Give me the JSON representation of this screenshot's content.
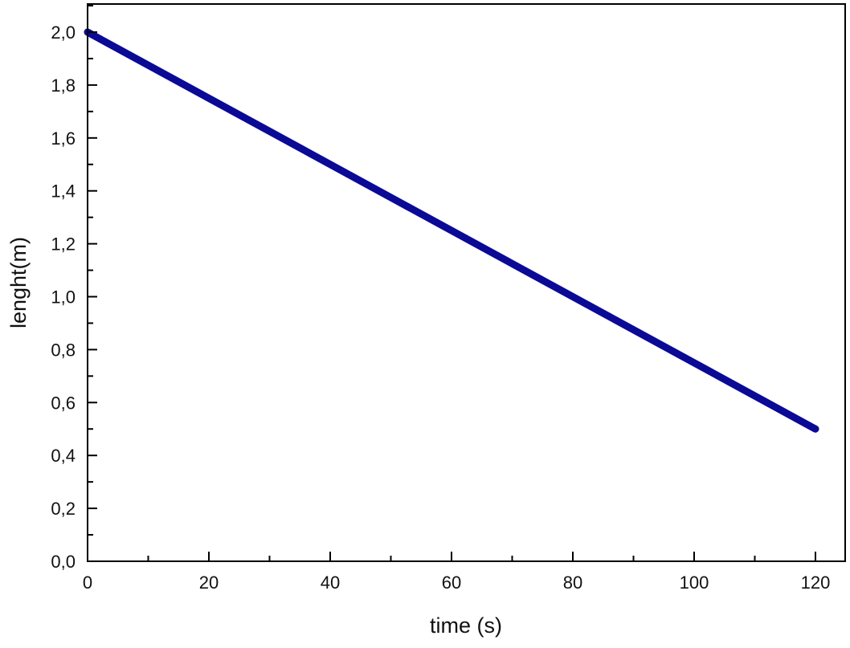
{
  "chart_data": {
    "type": "line",
    "title": "",
    "xlabel": "time (s)",
    "ylabel": "lenght(m)",
    "xlim": [
      0,
      125
    ],
    "ylim": [
      0,
      2.1
    ],
    "x_ticks": [
      0,
      20,
      40,
      60,
      80,
      100,
      120
    ],
    "x_tick_labels": [
      "0",
      "20",
      "40",
      "60",
      "80",
      "100",
      "120"
    ],
    "x_minor_step": 10,
    "y_ticks": [
      0,
      0.2,
      0.4,
      0.6,
      0.8,
      1.0,
      1.2,
      1.4,
      1.6,
      1.8,
      2.0
    ],
    "y_tick_labels": [
      "0,0",
      "0,2",
      "0,4",
      "0,6",
      "0,8",
      "1,0",
      "1,2",
      "1,4",
      "1,6",
      "1,8",
      "2,0"
    ],
    "y_minor_step": 0.1,
    "grid": false,
    "series": [
      {
        "x": [
          0,
          120
        ],
        "y": [
          2.0,
          0.5
        ],
        "color": "#0a0a96"
      }
    ]
  }
}
